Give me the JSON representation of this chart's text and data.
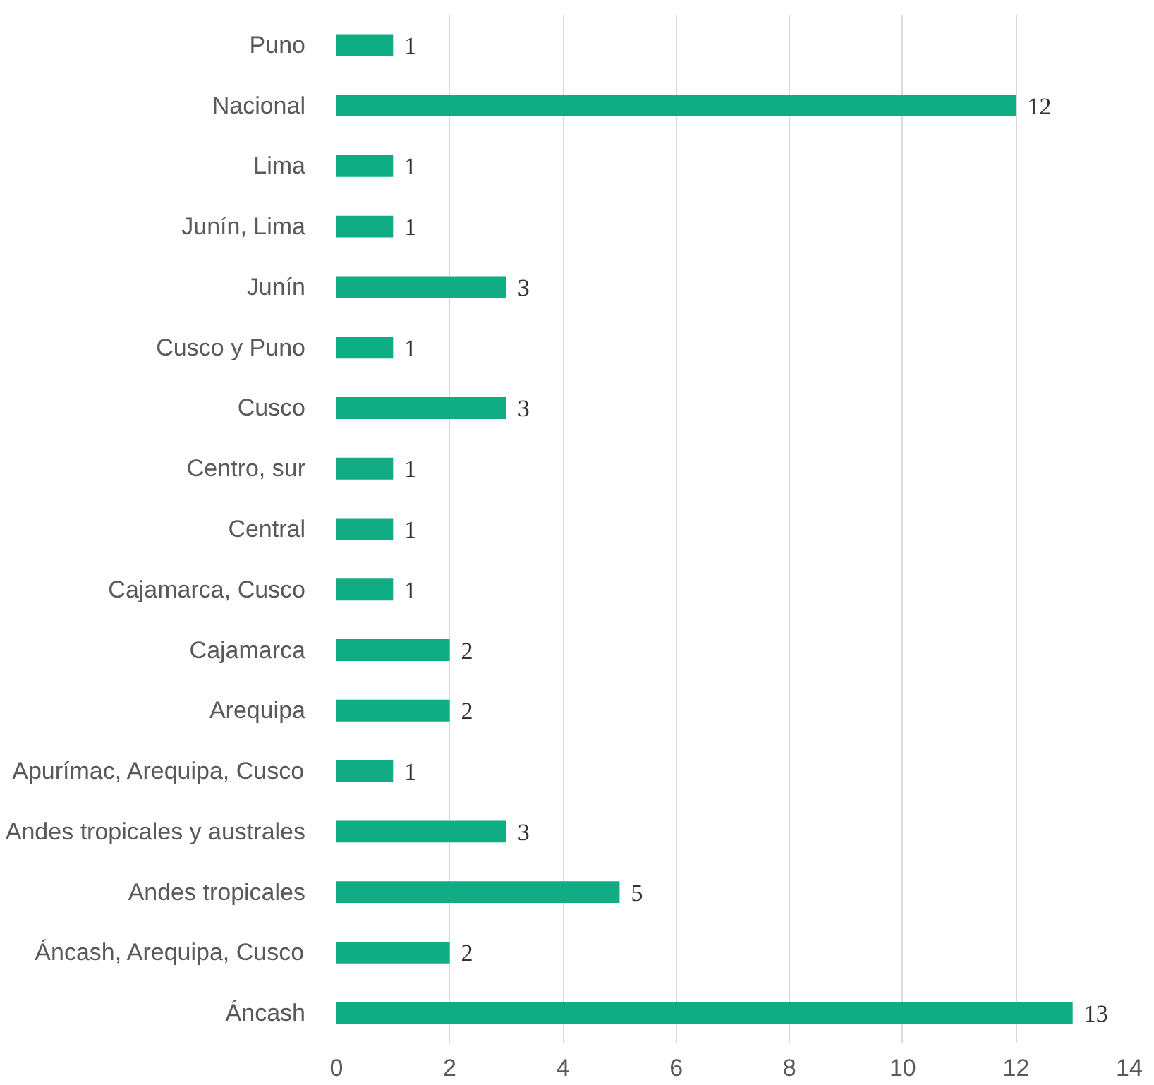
{
  "chart_data": {
    "type": "bar",
    "orientation": "horizontal",
    "categories": [
      "Puno",
      "Nacional",
      "Lima",
      "Junín, Lima",
      "Junín",
      "Cusco y Puno",
      "Cusco",
      "Centro, sur",
      "Central",
      "Cajamarca, Cusco",
      "Cajamarca",
      "Arequipa",
      "Apurímac, Arequipa, Cusco",
      "Andes tropicales y australes",
      "Andes tropicales",
      "Áncash, Arequipa, Cusco",
      "Áncash"
    ],
    "values": [
      1,
      12,
      1,
      1,
      3,
      1,
      3,
      1,
      1,
      1,
      2,
      2,
      1,
      3,
      5,
      2,
      13
    ],
    "color": "#10ac84",
    "xlim": [
      0,
      14
    ],
    "xticks": [
      0,
      2,
      4,
      6,
      8,
      10,
      12,
      14
    ],
    "grid": "x",
    "data_labels": true
  }
}
